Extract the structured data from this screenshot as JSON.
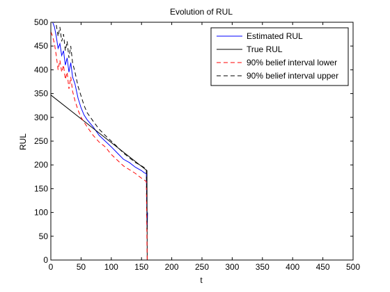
{
  "chart_data": {
    "type": "line",
    "title": "Evolution of RUL",
    "xlabel": "t",
    "ylabel": "RUL",
    "xlim": [
      0,
      500
    ],
    "ylim": [
      0,
      500
    ],
    "xticks": [
      0,
      50,
      100,
      150,
      200,
      250,
      300,
      350,
      400,
      450,
      500
    ],
    "yticks": [
      0,
      50,
      100,
      150,
      200,
      250,
      300,
      350,
      400,
      450,
      500
    ],
    "grid": false,
    "legend_position": "top-right",
    "series": [
      {
        "name": "Estimated RUL",
        "color": "#0000ff",
        "dash": "solid",
        "x": [
          0,
          3,
          6,
          9,
          12,
          15,
          18,
          21,
          24,
          27,
          30,
          33,
          36,
          40,
          45,
          50,
          55,
          60,
          70,
          80,
          90,
          100,
          110,
          120,
          130,
          140,
          150,
          155,
          158,
          159,
          159.5,
          160
        ],
        "y": [
          500,
          500,
          490,
          470,
          445,
          455,
          430,
          440,
          410,
          425,
          395,
          415,
          385,
          370,
          340,
          320,
          305,
          295,
          280,
          262,
          250,
          238,
          225,
          212,
          205,
          195,
          188,
          183,
          182,
          90,
          70,
          100
        ]
      },
      {
        "name": "True RUL",
        "color": "#000000",
        "dash": "solid",
        "x": [
          0,
          159,
          159.5
        ],
        "y": [
          347,
          188,
          0
        ]
      },
      {
        "name": "90% belief interval lower",
        "color": "#ff0000",
        "dash": "dashed",
        "x": [
          0,
          3,
          6,
          9,
          12,
          15,
          18,
          21,
          24,
          27,
          30,
          33,
          36,
          40,
          45,
          50,
          55,
          60,
          70,
          80,
          90,
          100,
          110,
          120,
          130,
          140,
          150,
          155,
          158,
          159,
          159.5
        ],
        "y": [
          480,
          470,
          455,
          430,
          400,
          420,
          395,
          410,
          380,
          395,
          360,
          385,
          355,
          335,
          315,
          300,
          290,
          280,
          262,
          248,
          238,
          222,
          210,
          198,
          190,
          182,
          172,
          168,
          165,
          40,
          0
        ]
      },
      {
        "name": "90% belief interval upper",
        "color": "#000000",
        "dash": "dashed",
        "x": [
          0,
          3,
          6,
          9,
          12,
          15,
          18,
          21,
          24,
          27,
          30,
          33,
          36,
          40,
          45,
          50,
          55,
          60,
          70,
          80,
          90,
          100,
          110,
          120,
          130,
          140,
          150,
          155,
          158,
          159,
          159.5
        ],
        "y": [
          500,
          500,
          500,
          495,
          470,
          490,
          460,
          475,
          440,
          460,
          425,
          450,
          415,
          395,
          365,
          345,
          325,
          310,
          292,
          275,
          262,
          250,
          238,
          225,
          215,
          205,
          198,
          194,
          192,
          110,
          60
        ]
      }
    ]
  }
}
